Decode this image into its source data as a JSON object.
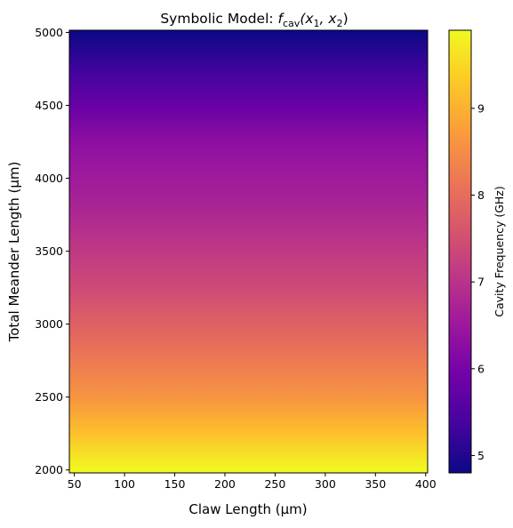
{
  "chart_data": {
    "type": "heatmap",
    "title": "Symbolic Model: ",
    "title_math": {
      "main": "f",
      "subscript": "cav",
      "args": "(x",
      "arg1_sub": "1",
      "sep": ", x",
      "arg2_sub": "2",
      "close": ")"
    },
    "xlabel": "Claw Length (µm)",
    "ylabel": "Total Meander Length (µm)",
    "colorbar_label": "Cavity Frequency (GHz)",
    "xlim": [
      45,
      402
    ],
    "ylim": [
      1980,
      5015
    ],
    "x_ticks": [
      50,
      100,
      150,
      200,
      250,
      300,
      350,
      400
    ],
    "x_tick_labels": [
      "50",
      "100",
      "150",
      "200",
      "250",
      "300",
      "350",
      "400"
    ],
    "y_ticks": [
      2000,
      2500,
      3000,
      3500,
      4000,
      4500,
      5000
    ],
    "y_tick_labels": [
      "2000",
      "2500",
      "3000",
      "3500",
      "4000",
      "4500",
      "5000"
    ],
    "colorbar_range": [
      4.8,
      9.9
    ],
    "colorbar_ticks": [
      5,
      6,
      7,
      8,
      9
    ],
    "colorbar_tick_labels": [
      "5",
      "6",
      "7",
      "8",
      "9"
    ],
    "colormap": "plasma",
    "colormap_stops": [
      "#0d0887",
      "#46039f",
      "#7201a8",
      "#9c179e",
      "#bd3786",
      "#d8576b",
      "#ed7953",
      "#fb9f3a",
      "#fdca26",
      "#f0f921"
    ],
    "grid": false,
    "y_samples": [
      2000,
      2250,
      2500,
      2750,
      3000,
      3250,
      3500,
      3750,
      4000,
      4250,
      4500,
      4750,
      5000
    ],
    "z_values": [
      9.9,
      9.2,
      8.6,
      8.2,
      7.8,
      7.4,
      7.1,
      6.8,
      6.55,
      6.3,
      5.8,
      5.3,
      4.8
    ]
  }
}
